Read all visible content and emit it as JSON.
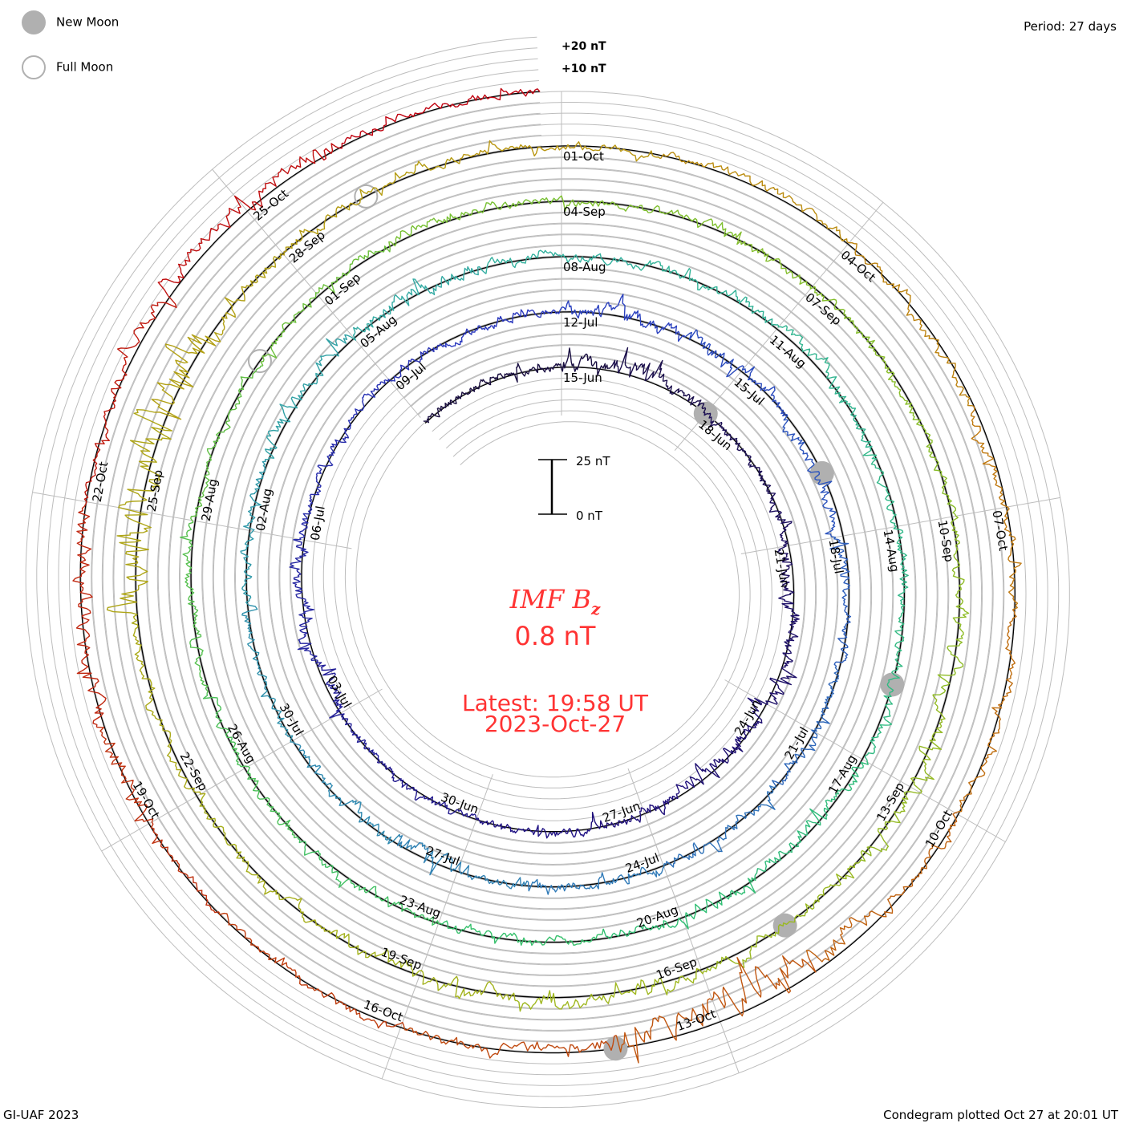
{
  "legend": {
    "new_moon": "New Moon",
    "full_moon": "Full Moon"
  },
  "period": "Period: 27 days",
  "footer_left": "GI-UAF 2023",
  "footer_right": "Condegram plotted Oct 27 at 20:01 UT",
  "center": {
    "title_main": "IMF B",
    "title_sub": "z",
    "value": "0.8 nT",
    "latest": "Latest: 19:58 UT",
    "date": "2023-Oct-27"
  },
  "scale_bar": {
    "top_label": "25 nT",
    "bottom_label": "0 nT",
    "span_nT": 25
  },
  "grid_labels": [
    "+20 nT",
    "+10 nT"
  ],
  "chart_data": {
    "type": "line",
    "subtype": "spiral condegram",
    "title": "IMF Bz",
    "period_days": 27,
    "start_date": "2023-06-12",
    "top_reference_date": "2023-06-15",
    "end_date": "2023-10-27",
    "units": "nT",
    "grid_step_nT": 5,
    "grid_range_nT": [
      -25,
      25
    ],
    "latest_value_nT": 0.8,
    "daily_mean_nT": [
      0,
      1,
      0,
      2,
      3,
      1,
      0,
      0,
      -1,
      -2,
      0,
      1,
      0,
      -1,
      0,
      0,
      1,
      0,
      0,
      0,
      0,
      -1,
      0,
      1,
      0,
      0,
      1,
      0,
      -1,
      0,
      2,
      1,
      0,
      0,
      -3,
      -3,
      -2,
      0,
      0,
      -1,
      0,
      1,
      0,
      0,
      0,
      -3,
      -1,
      0,
      0,
      0,
      0,
      1,
      1,
      2,
      1,
      0,
      1,
      0,
      0,
      1,
      2,
      0,
      -1,
      0,
      0,
      1,
      0,
      -1,
      0,
      0,
      0,
      -1,
      0,
      1,
      0,
      0,
      0,
      1,
      0,
      -1,
      0,
      1,
      2,
      1,
      0,
      1,
      0,
      0,
      -1,
      0,
      0,
      1,
      1,
      2,
      0,
      0,
      1,
      2,
      0,
      -1,
      0,
      0,
      1,
      2,
      2,
      3,
      2,
      0,
      0,
      0,
      1,
      0,
      1,
      2,
      0,
      -2,
      -2,
      -1,
      0,
      0,
      0,
      -4,
      -8,
      -6,
      -2,
      0,
      1,
      -1,
      0,
      2,
      1,
      -1,
      0,
      3,
      3,
      2,
      1,
      0
    ],
    "daily_range_nT": [
      4,
      4,
      4,
      8,
      10,
      6,
      4,
      5,
      6,
      8,
      8,
      8,
      8,
      8,
      8,
      6,
      5,
      4,
      4,
      5,
      5,
      8,
      8,
      8,
      5,
      5,
      4,
      4,
      5,
      6,
      8,
      8,
      8,
      5,
      6,
      6,
      6,
      5,
      5,
      6,
      6,
      6,
      6,
      5,
      5,
      10,
      8,
      5,
      5,
      5,
      5,
      5,
      8,
      8,
      8,
      8,
      5,
      5,
      5,
      5,
      6,
      6,
      6,
      6,
      5,
      5,
      8,
      8,
      8,
      5,
      5,
      5,
      5,
      5,
      5,
      5,
      5,
      5,
      5,
      5,
      5,
      6,
      6,
      5,
      5,
      5,
      5,
      5,
      5,
      5,
      5,
      8,
      8,
      8,
      5,
      5,
      8,
      8,
      8,
      8,
      5,
      5,
      5,
      6,
      20,
      20,
      20,
      6,
      5,
      5,
      5,
      5,
      5,
      5,
      5,
      6,
      6,
      5,
      5,
      5,
      5,
      14,
      18,
      16,
      8,
      5,
      5,
      5,
      5,
      10,
      10,
      10,
      5,
      8,
      8,
      8,
      5,
      5
    ],
    "date_labels": [
      "15-Jun",
      "18-Jun",
      "21-Jun",
      "24-Jun",
      "27-Jun",
      "30-Jun",
      "03-Jul",
      "06-Jul",
      "09-Jul",
      "12-Jul",
      "15-Jul",
      "18-Jul",
      "21-Jul",
      "24-Jul",
      "27-Jul",
      "30-Jul",
      "02-Aug",
      "05-Aug",
      "08-Aug",
      "11-Aug",
      "14-Aug",
      "17-Aug",
      "20-Aug",
      "23-Aug",
      "26-Aug",
      "29-Aug",
      "01-Sep",
      "04-Sep",
      "07-Sep",
      "10-Sep",
      "13-Sep",
      "16-Sep",
      "19-Sep",
      "22-Sep",
      "25-Sep",
      "28-Sep",
      "01-Oct",
      "04-Oct",
      "07-Oct",
      "10-Oct",
      "13-Oct",
      "16-Oct",
      "19-Oct",
      "22-Oct",
      "25-Oct"
    ],
    "new_moon_dates": [
      "2023-06-18",
      "2023-07-17",
      "2023-08-16",
      "2023-09-15",
      "2023-10-14"
    ],
    "full_moon_dates": [
      "2023-08-31",
      "2023-09-29"
    ],
    "color_stops": [
      {
        "turn": 0.0,
        "color": "#1a0f40"
      },
      {
        "turn": 0.5,
        "color": "#201080"
      },
      {
        "turn": 1.0,
        "color": "#2a3ac0"
      },
      {
        "turn": 1.5,
        "color": "#2f7ab8"
      },
      {
        "turn": 2.0,
        "color": "#33b0a0"
      },
      {
        "turn": 2.5,
        "color": "#30c070"
      },
      {
        "turn": 3.0,
        "color": "#7ac030"
      },
      {
        "turn": 3.5,
        "color": "#a0b820"
      },
      {
        "turn": 4.0,
        "color": "#b89810"
      },
      {
        "turn": 4.25,
        "color": "#c07810"
      },
      {
        "turn": 4.5,
        "color": "#c05010"
      },
      {
        "turn": 5.0,
        "color": "#c00010"
      }
    ]
  }
}
